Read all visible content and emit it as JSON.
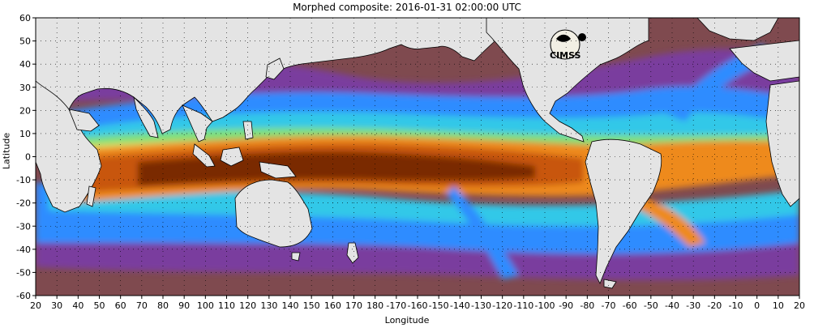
{
  "title": "Morphed composite: 2016-01-31 02:00:00 UTC",
  "axes": {
    "xlabel": "Longitude",
    "ylabel": "Latitude",
    "lat_ticks": [
      "60",
      "50",
      "40",
      "30",
      "20",
      "10",
      "0",
      "-10",
      "-20",
      "-30",
      "-40",
      "-50",
      "-60"
    ],
    "lon_ticks": [
      "20",
      "30",
      "40",
      "50",
      "60",
      "70",
      "80",
      "90",
      "100",
      "110",
      "120",
      "130",
      "140",
      "150",
      "160",
      "170",
      "180",
      "-170",
      "-160",
      "-150",
      "-140",
      "-130",
      "-120",
      "-110",
      "-100",
      "-90",
      "-80",
      "-70",
      "-60",
      "-50",
      "-40",
      "-30",
      "-20",
      "-10",
      "0",
      "10",
      "20"
    ],
    "lat_range": [
      -60,
      60
    ],
    "lon_range_east": [
      20,
      380
    ]
  },
  "logo": {
    "text": "CIMSS"
  },
  "colors": {
    "land": "#e4e4e4",
    "dry": "#7f4a4f",
    "dry_alt": "#8a5a60",
    "purple": "#7a3c9e",
    "blue": "#2f8cff",
    "cyan": "#33c8e8",
    "green": "#7ee07a",
    "yellow": "#e8e060",
    "orange": "#ee8a1a",
    "darkorange": "#c8560a",
    "darkbrown": "#7a2a06",
    "grid": "#000000"
  }
}
